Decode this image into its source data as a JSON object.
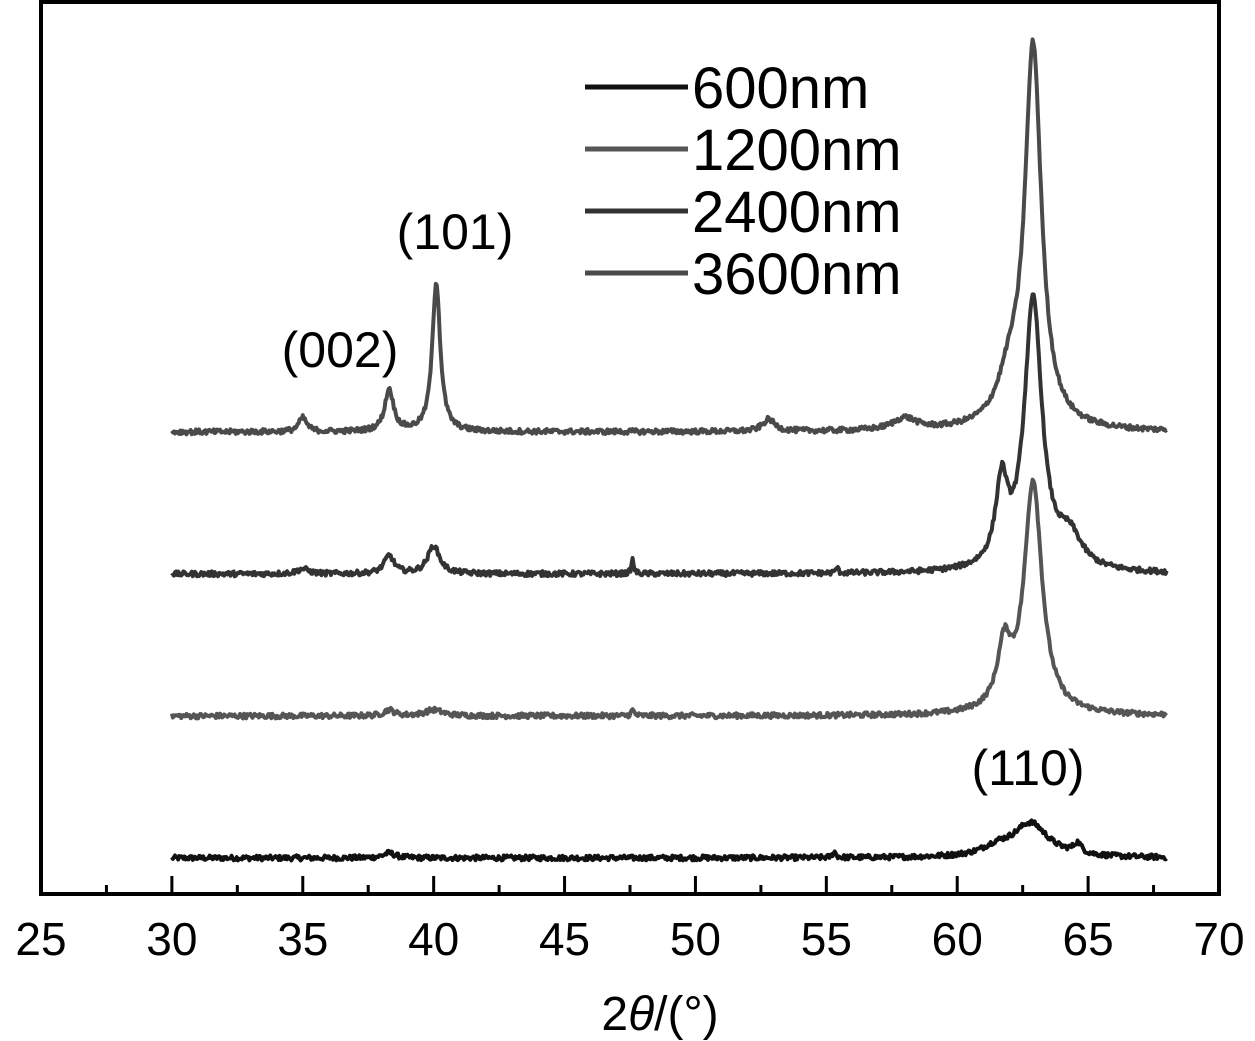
{
  "chart_data": {
    "type": "line",
    "xlabel_prefix": "2",
    "xlabel_symbol": "θ",
    "xlabel_suffix": "/(°)",
    "ylabel": "",
    "xlim": [
      25,
      70
    ],
    "xticks": [
      25,
      30,
      35,
      40,
      45,
      50,
      55,
      60,
      65,
      70
    ],
    "tick_labels": [
      "25",
      "30",
      "35",
      "40",
      "45",
      "50",
      "55",
      "60",
      "65",
      "70"
    ],
    "y_ticks_shown": false,
    "grid": false,
    "legend_position": "top-center",
    "legend": [
      "600nm",
      "1200nm",
      "2400nm",
      "3600nm"
    ],
    "peak_labels": [
      {
        "text": "(002)",
        "x": 35.0,
        "series": "3600nm"
      },
      {
        "text": "(101)",
        "x": 40.0,
        "series": "3600nm"
      },
      {
        "text": "(110)",
        "x": 62.8,
        "series": "600nm"
      }
    ],
    "series": [
      {
        "name": "600nm",
        "color": "#111111",
        "baseline": 0,
        "peaks": [
          {
            "x": 38.3,
            "h": 5,
            "w": 0.3
          },
          {
            "x": 55.3,
            "h": 6,
            "w": 0.08
          },
          {
            "x": 61.5,
            "h": 8,
            "w": 0.7
          },
          {
            "x": 62.8,
            "h": 34,
            "w": 0.9
          },
          {
            "x": 64.6,
            "h": 10,
            "w": 0.2
          }
        ]
      },
      {
        "name": "1200nm",
        "color": "#555555",
        "baseline": 142,
        "peaks": [
          {
            "x": 38.3,
            "h": 6,
            "w": 0.25
          },
          {
            "x": 40.0,
            "h": 6,
            "w": 0.45
          },
          {
            "x": 47.6,
            "h": 6,
            "w": 0.07
          },
          {
            "x": 61.8,
            "h": 60,
            "w": 0.35
          },
          {
            "x": 62.9,
            "h": 232,
            "w": 0.45
          }
        ]
      },
      {
        "name": "2400nm",
        "color": "#333333",
        "baseline": 284,
        "peaks": [
          {
            "x": 35.0,
            "h": 5,
            "w": 0.3
          },
          {
            "x": 38.3,
            "h": 18,
            "w": 0.25
          },
          {
            "x": 40.0,
            "h": 28,
            "w": 0.3
          },
          {
            "x": 47.6,
            "h": 14,
            "w": 0.06
          },
          {
            "x": 55.4,
            "h": 6,
            "w": 0.06
          },
          {
            "x": 61.7,
            "h": 80,
            "w": 0.3
          },
          {
            "x": 62.9,
            "h": 270,
            "w": 0.45
          },
          {
            "x": 64.3,
            "h": 30,
            "w": 0.6
          }
        ]
      },
      {
        "name": "3600nm",
        "color": "#4a4a4a",
        "baseline": 426,
        "peaks": [
          {
            "x": 35.0,
            "h": 14,
            "w": 0.2
          },
          {
            "x": 38.3,
            "h": 42,
            "w": 0.22
          },
          {
            "x": 40.1,
            "h": 150,
            "w": 0.2
          },
          {
            "x": 52.8,
            "h": 12,
            "w": 0.3
          },
          {
            "x": 58.0,
            "h": 12,
            "w": 0.6
          },
          {
            "x": 62.0,
            "h": 40,
            "w": 0.6
          },
          {
            "x": 62.9,
            "h": 380,
            "w": 0.42
          }
        ]
      }
    ]
  }
}
